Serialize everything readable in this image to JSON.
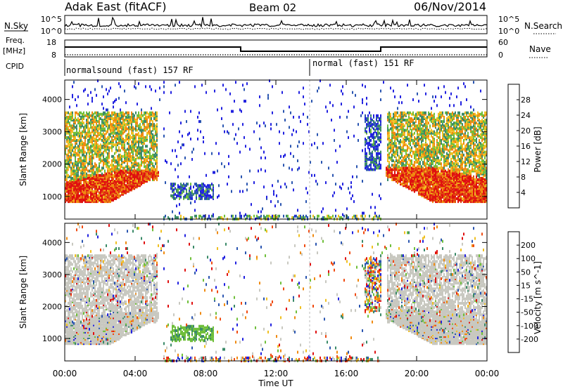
{
  "header": {
    "title": "Adak East (fitACF)",
    "beam": "Beam 02",
    "date": "06/Nov/2014"
  },
  "top_panel": {
    "left_label": "N.Sky",
    "right_label": "N.Search",
    "left_ticks": [
      "10^5",
      "10^0"
    ],
    "right_ticks": [
      "10^5",
      "10^0"
    ]
  },
  "freq_panel": {
    "left_label_1": "Freq.",
    "left_label_2": "[MHz]",
    "right_label": "Nave",
    "left_ticks": [
      "18",
      "8"
    ],
    "right_ticks": [
      "60",
      "0"
    ]
  },
  "cpid_panel": {
    "label": "CPID",
    "segments": [
      "normalsound (fast) 157 RF",
      "normal (fast) 151 RF"
    ]
  },
  "colors": {
    "power_scale": [
      "#2121e0",
      "#2a55b0",
      "#3a8a68",
      "#6fbf3a",
      "#f0c020",
      "#f08a10",
      "#e04a10",
      "#e01010"
    ],
    "velocity_scale": [
      "#e01010",
      "#f04a10",
      "#f08a10",
      "#f0c020",
      "#c8c8c0",
      "#c8c8c0",
      "#6fbf3a",
      "#3a8a68",
      "#2a55b0",
      "#2121e0"
    ]
  },
  "chart_data": [
    {
      "type": "heatmap",
      "name": "power",
      "xlabel": "",
      "ylabel": "Slant Range [km]",
      "x_ticks": [
        "00:00",
        "04:00",
        "08:00",
        "12:00",
        "16:00",
        "20:00",
        "00:00"
      ],
      "y_ticks": [
        "1000",
        "2000",
        "3000",
        "4000"
      ],
      "ylim": [
        300,
        4600
      ],
      "xlim_hours": [
        0,
        24
      ],
      "colorbar_label": "Power [dB]",
      "colorbar_ticks": [
        "4",
        "8",
        "12",
        "16",
        "20",
        "24",
        "28"
      ],
      "colorbar_range": [
        0,
        32
      ]
    },
    {
      "type": "heatmap",
      "name": "velocity",
      "xlabel": "Time UT",
      "ylabel": "Slant Range [km]",
      "x_ticks": [
        "00:00",
        "04:00",
        "08:00",
        "12:00",
        "16:00",
        "20:00",
        "00:00"
      ],
      "y_ticks": [
        "1000",
        "2000",
        "3000",
        "4000"
      ],
      "ylim": [
        300,
        4600
      ],
      "xlim_hours": [
        0,
        24
      ],
      "colorbar_label": "Velocity [m s^-1]",
      "colorbar_ticks": [
        "200",
        "100",
        "50",
        "15",
        "-15",
        "-50",
        "-100",
        "-200"
      ],
      "colorbar_range": [
        -250,
        250
      ]
    }
  ]
}
